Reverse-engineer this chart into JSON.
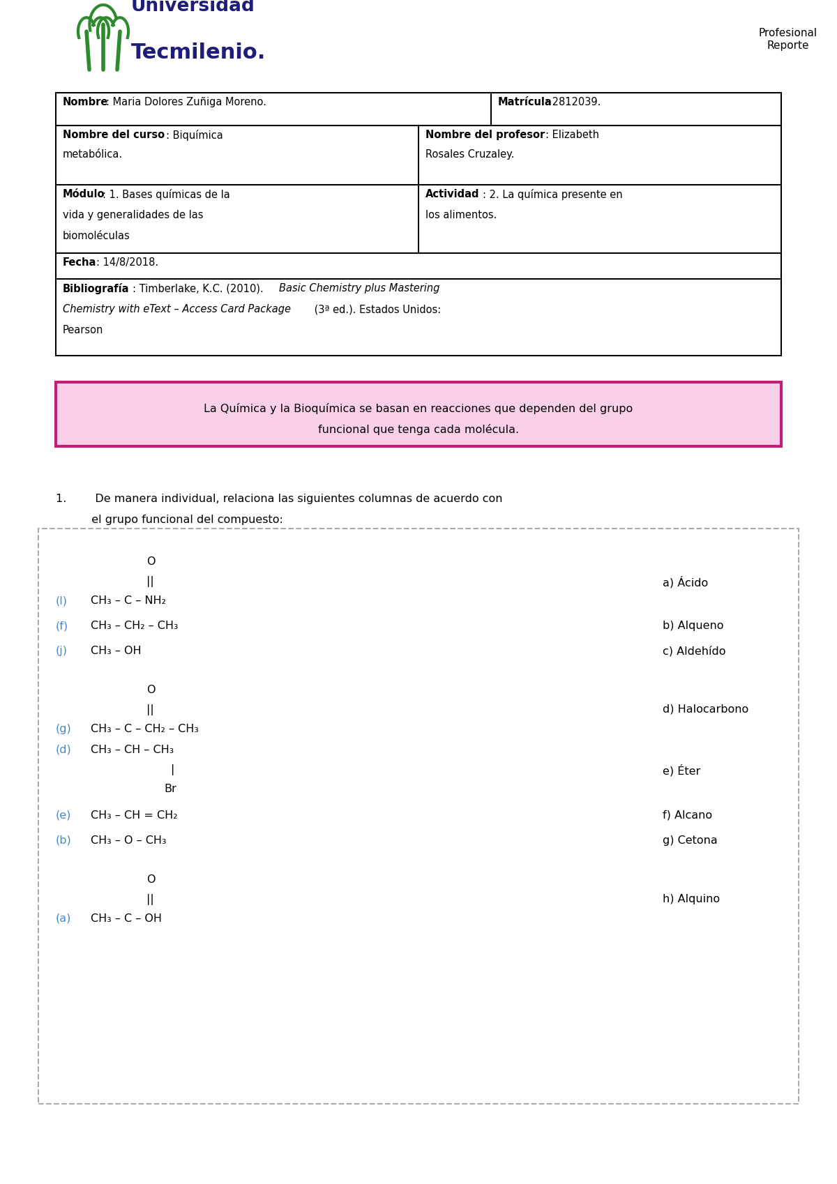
{
  "page_bg": "#ffffff",
  "logo_text_universidad": "Universidad",
  "logo_text_tecmilenio": "Tecmilenio.",
  "logo_green_color": "#2d8a2d",
  "logo_blue_color": "#1e1e7a",
  "header_right_line1": "Profesional",
  "header_right_line2": "Reporte",
  "pink_box_text_line1": "La Química y la Bioquímica se basan en reacciones que dependen del grupo",
  "pink_box_text_line2": "funcional que tenga cada molécula.",
  "pink_border_color": "#c41e7a",
  "pink_fill_color": "#f9d0e8",
  "question_line1": "1.        De manera individual, relaciona las siguientes columnas de acuerdo con",
  "question_line2": "          el grupo funcional del compuesto:",
  "dashed_box_color": "#aaaaaa",
  "label_color": "#4488cc",
  "formula_color": "#000000",
  "right_label_color": "#000000",
  "left_items": [
    {
      "label": "(l)",
      "pre_lines": [
        "O",
        "||"
      ],
      "main_line": "CH₃ – C – NH₂",
      "post_lines": []
    },
    {
      "label": "(f)",
      "pre_lines": [],
      "main_line": "CH₃ – CH₂ – CH₃",
      "post_lines": []
    },
    {
      "label": "(j)",
      "pre_lines": [],
      "main_line": "CH₃ – OH",
      "post_lines": []
    },
    {
      "label": "(g)",
      "pre_lines": [
        "O",
        "||"
      ],
      "main_line": "CH₃ – C – CH₂ – CH₃",
      "post_lines": []
    },
    {
      "label": "(d)",
      "pre_lines": [],
      "main_line": "CH₃ – CH – CH₃",
      "post_lines": [
        "|",
        "Br"
      ]
    },
    {
      "label": "(e)",
      "pre_lines": [],
      "main_line": "CH₃ – CH = CH₂",
      "post_lines": []
    },
    {
      "label": "(b)",
      "pre_lines": [],
      "main_line": "CH₃ – O – CH₃",
      "post_lines": []
    },
    {
      "label": "(a)",
      "pre_lines": [
        "O",
        "||"
      ],
      "main_line": "CH₃ – C – OH",
      "post_lines": []
    }
  ],
  "right_items": [
    "a) Ácido",
    "b) Alqueno",
    "c) Aldehído",
    "d) Halocarbono",
    "e) Éter",
    "f) Alcano",
    "g) Cetona",
    "h) Alquino"
  ]
}
